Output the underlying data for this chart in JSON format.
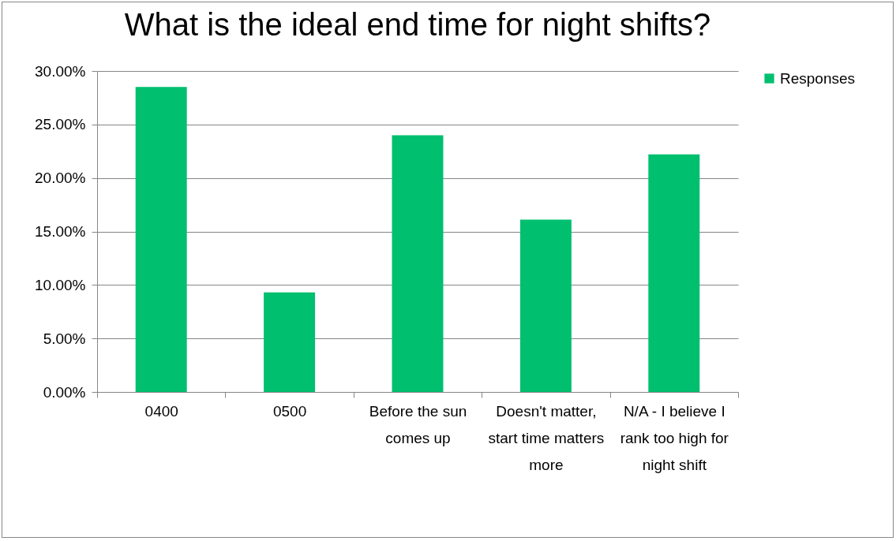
{
  "chart_data": {
    "type": "bar",
    "title": "What is the ideal end time for night shifts?",
    "categories": [
      "0400",
      "0500",
      "Before the sun comes up",
      "Doesn't matter, start time matters more",
      "N/A - I believe I rank too high for night shift"
    ],
    "series": [
      {
        "name": "Responses",
        "color": "#00bf6f",
        "values": [
          28.5,
          9.3,
          24.0,
          16.1,
          22.2
        ]
      }
    ],
    "ylim": [
      0,
      30
    ],
    "yticks": [
      {
        "value": 0,
        "label": "0.00%"
      },
      {
        "value": 5,
        "label": "5.00%"
      },
      {
        "value": 10,
        "label": "10.00%"
      },
      {
        "value": 15,
        "label": "15.00%"
      },
      {
        "value": 20,
        "label": "20.00%"
      },
      {
        "value": 25,
        "label": "25.00%"
      },
      {
        "value": 30,
        "label": "30.00%"
      }
    ],
    "grid": "y",
    "legend": "right"
  }
}
